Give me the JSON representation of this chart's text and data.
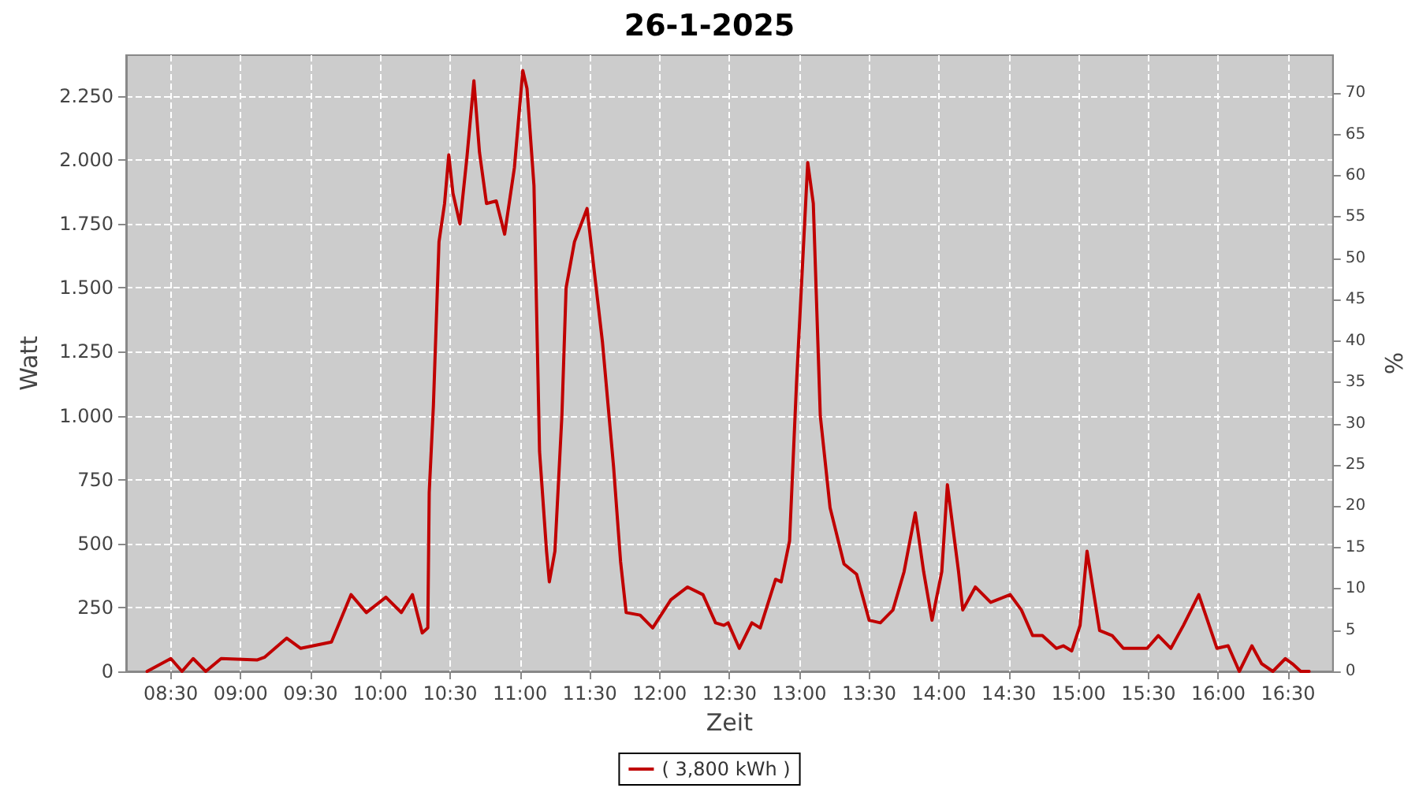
{
  "chart_data": {
    "type": "line",
    "title": "26-1-2025",
    "xlabel": "Zeit",
    "ylabel": "Watt",
    "y2label": "%",
    "xlim": [
      8.18,
      16.82
    ],
    "xticks": [
      {
        "value": 8.5,
        "label": "08:30"
      },
      {
        "value": 9,
        "label": "09:00"
      },
      {
        "value": 9.5,
        "label": "09:30"
      },
      {
        "value": 10,
        "label": "10:00"
      },
      {
        "value": 10.5,
        "label": "10:30"
      },
      {
        "value": 11,
        "label": "11:00"
      },
      {
        "value": 11.5,
        "label": "11:30"
      },
      {
        "value": 12,
        "label": "12:00"
      },
      {
        "value": 12.5,
        "label": "12:30"
      },
      {
        "value": 13,
        "label": "13:00"
      },
      {
        "value": 13.5,
        "label": "13:30"
      },
      {
        "value": 14,
        "label": "14:00"
      },
      {
        "value": 14.5,
        "label": "14:30"
      },
      {
        "value": 15,
        "label": "15:00"
      },
      {
        "value": 15.5,
        "label": "15:30"
      },
      {
        "value": 16,
        "label": "16:00"
      },
      {
        "value": 16.5,
        "label": "16:30"
      }
    ],
    "ylim": [
      0,
      2410
    ],
    "yticks": [
      0,
      250,
      500,
      750,
      {
        "value": 1000,
        "label": "1.000"
      },
      {
        "value": 1250,
        "label": "1.250"
      },
      {
        "value": 1500,
        "label": "1.500"
      },
      {
        "value": 1750,
        "label": "1.750"
      },
      {
        "value": 2000,
        "label": "2.000"
      },
      {
        "value": 2250,
        "label": "2.250"
      }
    ],
    "y2lim": [
      0,
      74.6
    ],
    "y2ticks": [
      0,
      5,
      10,
      15,
      20,
      25,
      30,
      35,
      40,
      45,
      50,
      55,
      60,
      65,
      70
    ],
    "grid": true,
    "legend": "bottom",
    "marker": "none",
    "line_style": "solid",
    "series": [
      {
        "name": "( 3,800 kWh )",
        "color": "#c00000",
        "x": [
          8.33,
          8.5,
          8.58,
          8.66,
          8.75,
          8.86,
          9.12,
          9.17,
          9.33,
          9.43,
          9.65,
          9.79,
          9.9,
          10.04,
          10.15,
          10.23,
          10.3,
          10.34,
          10.35,
          10.38,
          10.42,
          10.46,
          10.49,
          10.52,
          10.57,
          10.62,
          10.67,
          10.71,
          10.76,
          10.83,
          10.89,
          10.96,
          11.02,
          11.05,
          11.1,
          11.14,
          11.19,
          11.21,
          11.25,
          11.3,
          11.33,
          11.39,
          11.48,
          11.52,
          11.59,
          11.67,
          11.72,
          11.76,
          11.86,
          11.95,
          12.08,
          12.2,
          12.31,
          12.4,
          12.46,
          12.49,
          12.57,
          12.66,
          12.72,
          12.83,
          12.87,
          12.93,
          12.98,
          13.06,
          13.1,
          13.15,
          13.22,
          13.32,
          13.41,
          13.5,
          13.58,
          13.67,
          13.75,
          13.83,
          13.89,
          13.95,
          14.02,
          14.06,
          14.14,
          14.17,
          14.26,
          14.37,
          14.51,
          14.59,
          14.67,
          14.74,
          14.84,
          14.89,
          14.95,
          15.01,
          15.06,
          15.15,
          15.24,
          15.32,
          15.49,
          15.57,
          15.66,
          15.75,
          15.86,
          15.99,
          16.07,
          16.15,
          16.24,
          16.31,
          16.39,
          16.48,
          16.53,
          16.59,
          16.65
        ],
        "values": [
          0,
          50,
          0,
          50,
          0,
          50,
          45,
          55,
          130,
          90,
          115,
          300,
          230,
          290,
          230,
          300,
          150,
          170,
          700,
          1040,
          1680,
          1830,
          2020,
          1870,
          1750,
          2010,
          2310,
          2030,
          1830,
          1840,
          1710,
          1970,
          2350,
          2280,
          1900,
          860,
          470,
          350,
          470,
          1000,
          1500,
          1680,
          1810,
          1620,
          1290,
          800,
          430,
          230,
          220,
          170,
          280,
          330,
          300,
          190,
          180,
          190,
          90,
          190,
          170,
          360,
          350,
          510,
          1130,
          1990,
          1830,
          1000,
          640,
          420,
          380,
          200,
          190,
          240,
          390,
          620,
          390,
          200,
          390,
          730,
          390,
          240,
          330,
          270,
          300,
          240,
          140,
          140,
          90,
          100,
          80,
          180,
          470,
          160,
          140,
          90,
          90,
          140,
          90,
          180,
          300,
          90,
          100,
          0,
          100,
          30,
          0,
          50,
          30,
          0,
          0
        ]
      }
    ]
  }
}
